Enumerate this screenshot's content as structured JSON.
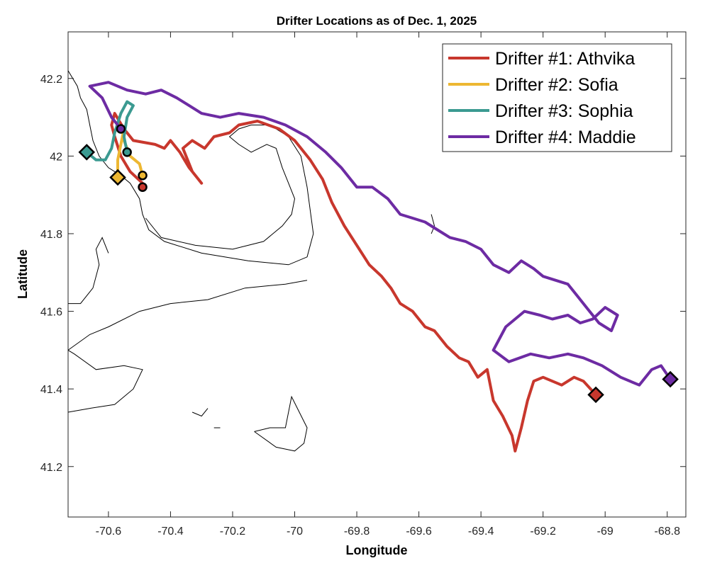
{
  "chart_data": {
    "type": "line",
    "title": "Drifter Locations as of Dec. 1, 2025",
    "xlabel": "Longitude",
    "ylabel": "Latitude",
    "xlim": [
      -70.73,
      -68.74
    ],
    "ylim": [
      41.07,
      42.32
    ],
    "xticks": [
      -70.6,
      -70.4,
      -70.2,
      -70,
      -69.8,
      -69.6,
      -69.4,
      -69.2,
      -69,
      -68.8
    ],
    "xtick_labels": [
      "-70.6",
      "-70.4",
      "-70.2",
      "-70",
      "-69.8",
      "-69.6",
      "-69.4",
      "-69.2",
      "-69",
      "-68.8"
    ],
    "yticks": [
      41.2,
      41.4,
      41.6,
      41.8,
      42,
      42.2
    ],
    "ytick_labels": [
      "41.2",
      "41.4",
      "41.6",
      "41.8",
      "42",
      "42.2"
    ],
    "grid": false,
    "legend_position": "top-right",
    "coastline_color": "#000000",
    "series": [
      {
        "name": "Drifter #1: Athvika",
        "color": "#C8372D",
        "start": [
          -70.49,
          41.92
        ],
        "end": [
          -69.03,
          41.385
        ],
        "track": [
          [
            -70.49,
            41.92
          ],
          [
            -70.49,
            41.93
          ],
          [
            -70.53,
            41.96
          ],
          [
            -70.56,
            42.0
          ],
          [
            -70.58,
            42.05
          ],
          [
            -70.59,
            42.08
          ],
          [
            -70.58,
            42.11
          ],
          [
            -70.55,
            42.07
          ],
          [
            -70.52,
            42.04
          ],
          [
            -70.45,
            42.03
          ],
          [
            -70.42,
            42.02
          ],
          [
            -70.4,
            42.04
          ],
          [
            -70.37,
            42.01
          ],
          [
            -70.34,
            41.97
          ],
          [
            -70.3,
            41.93
          ],
          [
            -70.33,
            41.96
          ],
          [
            -70.36,
            42.02
          ],
          [
            -70.33,
            42.04
          ],
          [
            -70.29,
            42.02
          ],
          [
            -70.26,
            42.05
          ],
          [
            -70.21,
            42.06
          ],
          [
            -70.18,
            42.08
          ],
          [
            -70.12,
            42.09
          ],
          [
            -70.05,
            42.07
          ],
          [
            -70.0,
            42.04
          ],
          [
            -69.95,
            41.99
          ],
          [
            -69.91,
            41.94
          ],
          [
            -69.88,
            41.88
          ],
          [
            -69.84,
            41.82
          ],
          [
            -69.8,
            41.77
          ],
          [
            -69.76,
            41.72
          ],
          [
            -69.72,
            41.69
          ],
          [
            -69.69,
            41.66
          ],
          [
            -69.66,
            41.62
          ],
          [
            -69.62,
            41.6
          ],
          [
            -69.58,
            41.56
          ],
          [
            -69.55,
            41.55
          ],
          [
            -69.51,
            41.51
          ],
          [
            -69.47,
            41.48
          ],
          [
            -69.44,
            41.47
          ],
          [
            -69.41,
            41.43
          ],
          [
            -69.38,
            41.45
          ],
          [
            -69.36,
            41.37
          ],
          [
            -69.33,
            41.33
          ],
          [
            -69.3,
            41.28
          ],
          [
            -69.29,
            41.24
          ],
          [
            -69.27,
            41.3
          ],
          [
            -69.25,
            41.37
          ],
          [
            -69.23,
            41.42
          ],
          [
            -69.2,
            41.43
          ],
          [
            -69.17,
            41.42
          ],
          [
            -69.14,
            41.41
          ],
          [
            -69.1,
            41.43
          ],
          [
            -69.07,
            41.42
          ],
          [
            -69.03,
            41.385
          ]
        ]
      },
      {
        "name": "Drifter #2: Sofia",
        "color": "#EDB732",
        "start": [
          -70.49,
          41.95
        ],
        "end": [
          -70.57,
          41.945
        ],
        "track": [
          [
            -70.49,
            41.95
          ],
          [
            -70.5,
            41.98
          ],
          [
            -70.53,
            42.0
          ],
          [
            -70.55,
            42.04
          ],
          [
            -70.55,
            42.07
          ],
          [
            -70.56,
            42.03
          ],
          [
            -70.57,
            41.99
          ],
          [
            -70.57,
            41.945
          ]
        ]
      },
      {
        "name": "Drifter #3: Sophia",
        "color": "#3B9A91",
        "start": [
          -70.54,
          42.01
        ],
        "end": [
          -70.67,
          42.01
        ],
        "track": [
          [
            -70.54,
            42.01
          ],
          [
            -70.55,
            42.05
          ],
          [
            -70.54,
            42.1
          ],
          [
            -70.52,
            42.13
          ],
          [
            -70.54,
            42.14
          ],
          [
            -70.56,
            42.11
          ],
          [
            -70.58,
            42.06
          ],
          [
            -70.59,
            42.02
          ],
          [
            -70.61,
            41.99
          ],
          [
            -70.64,
            41.99
          ],
          [
            -70.67,
            42.01
          ]
        ]
      },
      {
        "name": "Drifter #4: Maddie",
        "color": "#6D2BA3",
        "start": [
          -70.56,
          42.07
        ],
        "end": [
          -68.79,
          41.425
        ],
        "track": [
          [
            -70.56,
            42.07
          ],
          [
            -70.59,
            42.1
          ],
          [
            -70.62,
            42.15
          ],
          [
            -70.66,
            42.18
          ],
          [
            -70.6,
            42.19
          ],
          [
            -70.54,
            42.17
          ],
          [
            -70.48,
            42.16
          ],
          [
            -70.43,
            42.17
          ],
          [
            -70.38,
            42.15
          ],
          [
            -70.34,
            42.13
          ],
          [
            -70.3,
            42.11
          ],
          [
            -70.24,
            42.1
          ],
          [
            -70.18,
            42.11
          ],
          [
            -70.1,
            42.1
          ],
          [
            -70.03,
            42.08
          ],
          [
            -69.96,
            42.05
          ],
          [
            -69.9,
            42.01
          ],
          [
            -69.85,
            41.97
          ],
          [
            -69.8,
            41.92
          ],
          [
            -69.75,
            41.92
          ],
          [
            -69.7,
            41.89
          ],
          [
            -69.66,
            41.85
          ],
          [
            -69.62,
            41.84
          ],
          [
            -69.58,
            41.83
          ],
          [
            -69.54,
            41.81
          ],
          [
            -69.5,
            41.79
          ],
          [
            -69.45,
            41.78
          ],
          [
            -69.4,
            41.76
          ],
          [
            -69.36,
            41.72
          ],
          [
            -69.31,
            41.7
          ],
          [
            -69.27,
            41.73
          ],
          [
            -69.23,
            41.71
          ],
          [
            -69.2,
            41.69
          ],
          [
            -69.16,
            41.68
          ],
          [
            -69.12,
            41.67
          ],
          [
            -69.09,
            41.64
          ],
          [
            -69.06,
            41.61
          ],
          [
            -69.02,
            41.57
          ],
          [
            -68.98,
            41.55
          ],
          [
            -68.96,
            41.59
          ],
          [
            -69.0,
            41.61
          ],
          [
            -69.04,
            41.58
          ],
          [
            -69.08,
            41.57
          ],
          [
            -69.12,
            41.59
          ],
          [
            -69.17,
            41.58
          ],
          [
            -69.21,
            41.59
          ],
          [
            -69.26,
            41.6
          ],
          [
            -69.32,
            41.56
          ],
          [
            -69.36,
            41.5
          ],
          [
            -69.31,
            41.47
          ],
          [
            -69.24,
            41.49
          ],
          [
            -69.18,
            41.48
          ],
          [
            -69.12,
            41.49
          ],
          [
            -69.07,
            41.48
          ],
          [
            -69.01,
            41.46
          ],
          [
            -68.95,
            41.43
          ],
          [
            -68.89,
            41.41
          ],
          [
            -68.85,
            41.45
          ],
          [
            -68.82,
            41.46
          ],
          [
            -68.79,
            41.425
          ]
        ]
      }
    ]
  }
}
